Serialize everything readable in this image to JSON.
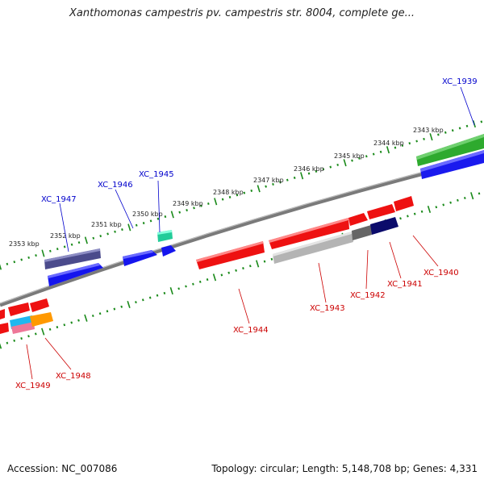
{
  "title": "Xanthomonas campestris pv. campestris str. 8004, complete ge...",
  "footer": {
    "accession": "Accession: NC_007086",
    "summary": "Topology: circular; Length: 5,148,708 bp; Genes: 4,331"
  },
  "colors": {
    "scale": "#1a8a1a",
    "forward_label": "#0000cc",
    "reverse_label": "#cc0000",
    "backbone": "#777777"
  },
  "scale_labels": [
    "2343 kbp",
    "2344 kbp",
    "2345 kbp",
    "2346 kbp",
    "2347 kbp",
    "2348 kbp",
    "2349 kbp",
    "2350 kbp",
    "2351 kbp",
    "2352 kbp",
    "2353 kbp"
  ],
  "gene_labels": {
    "forward": [
      "XC_1939",
      "XC_1945",
      "XC_1946",
      "XC_1947"
    ],
    "reverse": [
      "XC_1940",
      "XC_1941",
      "XC_1942",
      "XC_1943",
      "XC_1944",
      "XC_1948",
      "XC_1949"
    ]
  }
}
